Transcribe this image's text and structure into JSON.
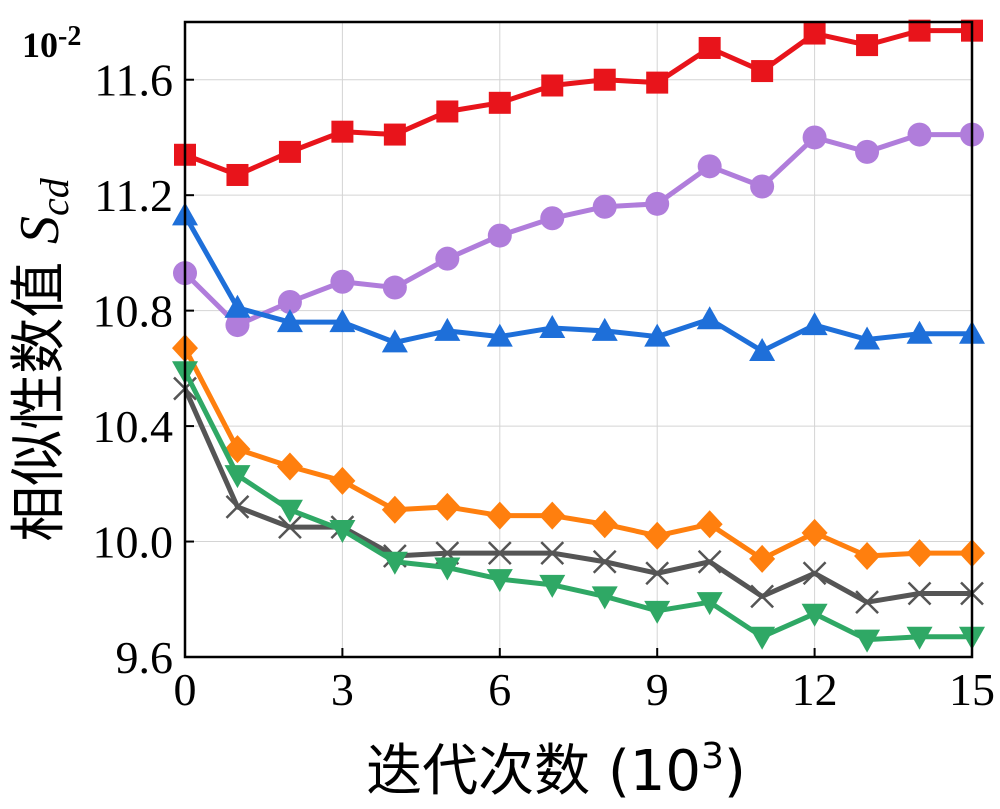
{
  "chart_data": {
    "type": "line",
    "xlabel": "迭代次数 (10",
    "xlabel_sup": "3",
    "xlabel_close": ")",
    "ylabel": "相似性数值 ",
    "ylabel_symbol": "S",
    "ylabel_sub": "cd",
    "y_multiplier": "10",
    "y_multiplier_exp": "-2",
    "xlim": [
      0,
      15
    ],
    "ylim": [
      9.6,
      11.8
    ],
    "x_ticks": [
      "0",
      "3",
      "6",
      "9",
      "12",
      "15"
    ],
    "y_ticks": [
      "9.6",
      "10.0",
      "10.4",
      "10.8",
      "11.2",
      "11.6"
    ],
    "grid": true,
    "legend": "none",
    "x": [
      0,
      1,
      2,
      3,
      4,
      5,
      6,
      7,
      8,
      9,
      10,
      11,
      12,
      13,
      14,
      15
    ],
    "series": [
      {
        "color": "#e8141b",
        "marker": "square",
        "values": [
          11.34,
          11.27,
          11.35,
          11.42,
          11.41,
          11.49,
          11.52,
          11.58,
          11.6,
          11.59,
          11.71,
          11.63,
          11.76,
          11.72,
          11.77,
          11.77
        ]
      },
      {
        "color": "#b07ddb",
        "marker": "circle",
        "values": [
          10.93,
          10.75,
          10.83,
          10.9,
          10.88,
          10.98,
          11.06,
          11.12,
          11.16,
          11.17,
          11.3,
          11.23,
          11.4,
          11.35,
          11.41,
          11.41
        ]
      },
      {
        "color": "#1e6fd9",
        "marker": "triangle-up",
        "values": [
          11.13,
          10.81,
          10.76,
          10.76,
          10.69,
          10.73,
          10.71,
          10.74,
          10.73,
          10.71,
          10.77,
          10.66,
          10.75,
          10.7,
          10.72,
          10.72
        ]
      },
      {
        "color": "#ff7f0e",
        "marker": "diamond",
        "values": [
          10.67,
          10.32,
          10.26,
          10.21,
          10.11,
          10.12,
          10.09,
          10.09,
          10.06,
          10.02,
          10.06,
          9.94,
          10.03,
          9.95,
          9.96,
          9.96
        ]
      },
      {
        "color": "#555555",
        "marker": "x",
        "values": [
          10.53,
          10.12,
          10.05,
          10.05,
          9.95,
          9.96,
          9.96,
          9.96,
          9.93,
          9.89,
          9.93,
          9.81,
          9.89,
          9.79,
          9.82,
          9.82
        ]
      },
      {
        "color": "#2fa865",
        "marker": "triangle-down",
        "values": [
          10.59,
          10.23,
          10.11,
          10.04,
          9.93,
          9.91,
          9.87,
          9.85,
          9.81,
          9.76,
          9.79,
          9.67,
          9.75,
          9.66,
          9.67,
          9.67
        ]
      }
    ]
  }
}
